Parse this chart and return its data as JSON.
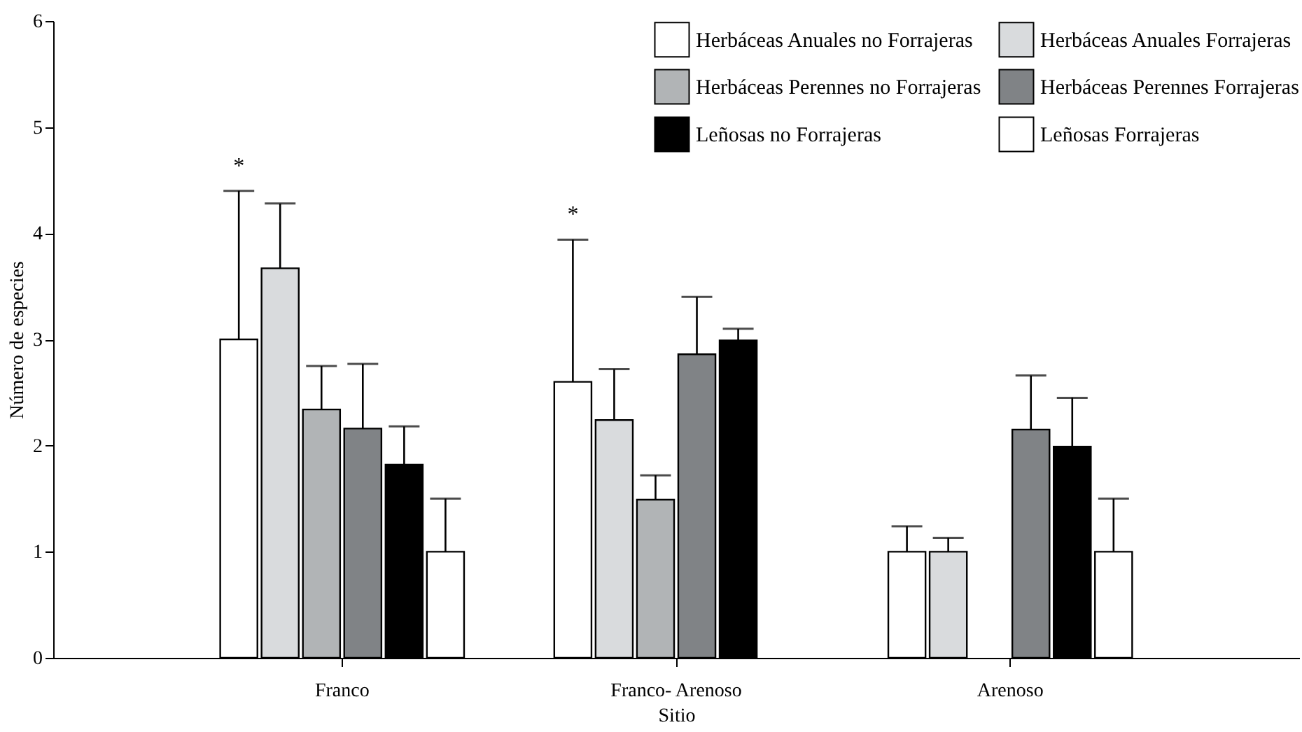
{
  "chart_data": {
    "type": "bar",
    "xlabel": "Sitio",
    "ylabel": "Número de especies",
    "categories": [
      "Franco",
      "Franco- Arenoso",
      "Arenoso"
    ],
    "series": [
      {
        "name": "Herbáceas Anuales no Forrajeras",
        "color": "#ffffff",
        "values": [
          3.0,
          2.6,
          1.0
        ],
        "errors": [
          [
            3.0,
            4.4
          ],
          [
            2.6,
            3.94
          ],
          [
            1.0,
            1.24
          ]
        ]
      },
      {
        "name": "Herbáceas Anuales Forrajeras",
        "color": "#d9dbdd",
        "values": [
          3.67,
          2.24,
          1.0
        ],
        "errors": [
          [
            3.67,
            4.28
          ],
          [
            2.24,
            2.72
          ],
          [
            1.0,
            1.13
          ]
        ]
      },
      {
        "name": "Herbáceas Perennes no Forrajeras",
        "color": "#b1b4b6",
        "values": [
          2.34,
          1.49,
          null
        ],
        "errors": [
          [
            2.34,
            2.75
          ],
          [
            1.49,
            1.72
          ],
          null
        ]
      },
      {
        "name": "Herbáceas Perennes Forrajeras",
        "color": "#808386",
        "values": [
          2.16,
          2.86,
          2.15
        ],
        "errors": [
          [
            2.16,
            2.77
          ],
          [
            2.86,
            3.4
          ],
          [
            2.15,
            2.66
          ]
        ]
      },
      {
        "name": "Leñosas no Forrajeras",
        "color": "#000000",
        "values": [
          1.82,
          2.99,
          1.99
        ],
        "errors": [
          [
            1.82,
            2.18
          ],
          [
            2.99,
            3.1
          ],
          [
            1.99,
            2.45
          ]
        ]
      },
      {
        "name": "Leñosas Forrajeras",
        "color": "#ffffff",
        "values": [
          1.0,
          null,
          1.0
        ],
        "errors": [
          [
            1.0,
            1.5
          ],
          null,
          [
            1.0,
            1.5
          ]
        ]
      }
    ],
    "annotations": [
      "*",
      "*"
    ],
    "ylim": [
      0,
      6
    ],
    "yticks": [
      0,
      1,
      2,
      3,
      4,
      5,
      6
    ],
    "grid": false,
    "legend": "top right"
  }
}
